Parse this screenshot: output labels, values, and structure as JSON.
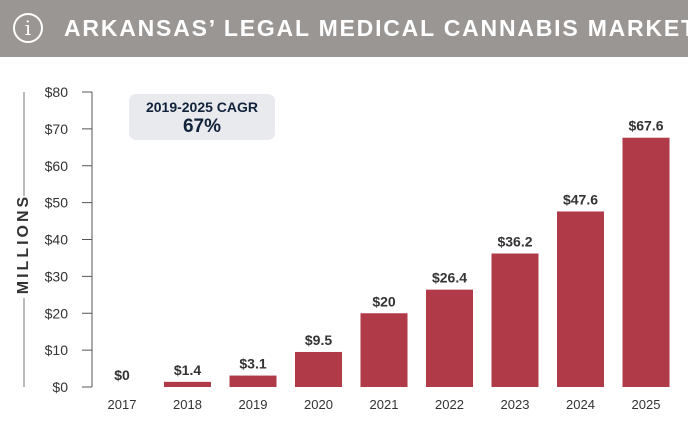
{
  "header": {
    "title": "ARKANSAS’ LEGAL MEDICAL CANNABIS MARKET",
    "icon": "info-icon"
  },
  "callout": {
    "label": "2019-2025 CAGR",
    "value": "67%"
  },
  "chart_data": {
    "type": "bar",
    "title": "ARKANSAS’ LEGAL MEDICAL CANNABIS MARKET",
    "ylabel": "MILLIONS",
    "xlabel": "",
    "categories": [
      "2017",
      "2018",
      "2019",
      "2020",
      "2021",
      "2022",
      "2023",
      "2024",
      "2025"
    ],
    "values": [
      0,
      1.4,
      3.1,
      9.5,
      20,
      26.4,
      36.2,
      47.6,
      67.6
    ],
    "value_labels": [
      "$0",
      "$1.4",
      "$3.1",
      "$9.5",
      "$20",
      "$26.4",
      "$36.2",
      "$47.6",
      "$67.6"
    ],
    "ylim": [
      0,
      80
    ],
    "yticks": [
      0,
      10,
      20,
      30,
      40,
      50,
      60,
      70,
      80
    ],
    "ytick_labels": [
      "$0",
      "$10",
      "$20",
      "$30",
      "$40",
      "$50",
      "$60",
      "$70",
      "$80"
    ],
    "grid": false,
    "colors": {
      "bar": "#b03a48",
      "header": "#9a9693",
      "callout_bg": "#e8eaee",
      "callout_text": "#12223a"
    }
  }
}
